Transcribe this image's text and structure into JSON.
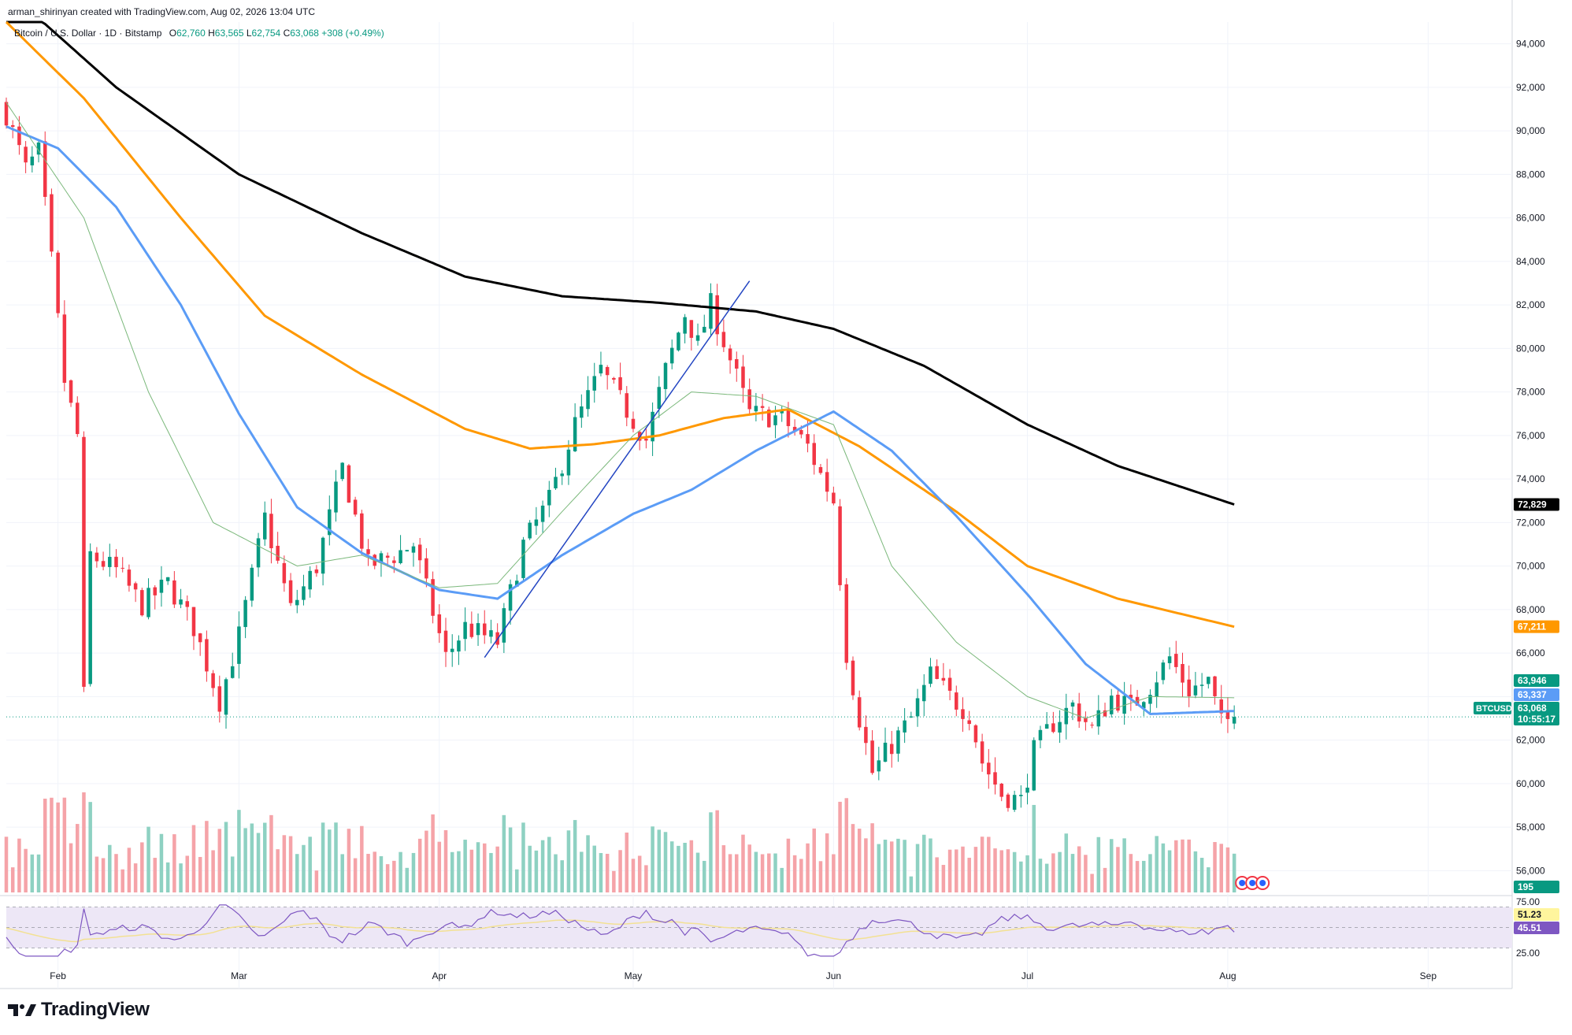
{
  "watermark": "arman_shirinyan created with TradingView.com, Aug 02, 2026 13:04 UTC",
  "symbol": {
    "name": "Bitcoin / U.S. Dollar · 1D · Bitstamp",
    "open_label": "O",
    "open": "62,760",
    "high_label": "H",
    "high": "63,565",
    "low_label": "L",
    "low": "62,754",
    "close_label": "C",
    "close": "63,068",
    "change": "+308 (+0.49%)"
  },
  "brand": "TradingView",
  "colors": {
    "up": "#089981",
    "down": "#f23645",
    "vol_up": "#8ed1c2",
    "vol_down": "#f5a3a8",
    "ma200": "#000000",
    "ma100": "#ff9800",
    "ma50": "#5b9cf6",
    "ma20": "#7bb87b",
    "rsi": "#7e57c2",
    "rsi_ma": "#f3e193",
    "trendline": "#2345c2",
    "rsi_band": "#ede7f6"
  },
  "chart_data": {
    "type": "candlestick",
    "title": "Bitcoin / U.S. Dollar · 1D · Bitstamp",
    "x_range": [
      "2026-01-24",
      "2026-09-14"
    ],
    "x_ticks": [
      {
        "date": "2026-02-01",
        "label": "Feb"
      },
      {
        "date": "2026-03-01",
        "label": "Mar"
      },
      {
        "date": "2026-04-01",
        "label": "Apr"
      },
      {
        "date": "2026-05-01",
        "label": "May"
      },
      {
        "date": "2026-06-01",
        "label": "Jun"
      },
      {
        "date": "2026-07-01",
        "label": "Jul"
      },
      {
        "date": "2026-08-01",
        "label": "Aug"
      },
      {
        "date": "2026-09-01",
        "label": "Sep"
      }
    ],
    "ylim": [
      55000,
      95000
    ],
    "y_ticks": [
      "56,000",
      "58,000",
      "60,000",
      "62,000",
      "64,000",
      "66,000",
      "68,000",
      "70,000",
      "72,000",
      "74,000",
      "76,000",
      "78,000",
      "80,000",
      "82,000",
      "84,000",
      "86,000",
      "88,000",
      "90,000",
      "92,000",
      "94,000"
    ],
    "y_tick_values": [
      56000,
      58000,
      60000,
      62000,
      64000,
      66000,
      68000,
      70000,
      72000,
      74000,
      76000,
      78000,
      80000,
      82000,
      84000,
      86000,
      88000,
      90000,
      92000,
      94000
    ],
    "last_date": "2026-08-02",
    "candle_anchors": [
      [
        "2026-01-24",
        90800
      ],
      [
        "2026-01-27",
        88200
      ],
      [
        "2026-01-29",
        89000
      ],
      [
        "2026-01-31",
        84000
      ],
      [
        "2026-02-02",
        78500
      ],
      [
        "2026-02-04",
        76000
      ],
      [
        "2026-02-05",
        64000
      ],
      [
        "2026-02-06",
        70500
      ],
      [
        "2026-02-10",
        69800
      ],
      [
        "2026-02-14",
        68200
      ],
      [
        "2026-02-18",
        69200
      ],
      [
        "2026-02-22",
        67200
      ],
      [
        "2026-02-26",
        63800
      ],
      [
        "2026-03-01",
        66800
      ],
      [
        "2026-03-03",
        69500
      ],
      [
        "2026-03-05",
        72200
      ],
      [
        "2026-03-09",
        68000
      ],
      [
        "2026-03-13",
        70000
      ],
      [
        "2026-03-17",
        74500
      ],
      [
        "2026-03-21",
        70000
      ],
      [
        "2026-03-25",
        70500
      ],
      [
        "2026-03-28",
        71000
      ],
      [
        "2026-04-02",
        65800
      ],
      [
        "2026-04-05",
        67200
      ],
      [
        "2026-04-10",
        66500
      ],
      [
        "2026-04-14",
        71000
      ],
      [
        "2026-04-18",
        73000
      ],
      [
        "2026-04-22",
        76500
      ],
      [
        "2026-04-26",
        79000
      ],
      [
        "2026-04-29",
        77600
      ],
      [
        "2026-05-03",
        75800
      ],
      [
        "2026-05-06",
        79000
      ],
      [
        "2026-05-09",
        81600
      ],
      [
        "2026-05-11",
        80200
      ],
      [
        "2026-05-13",
        82000
      ],
      [
        "2026-05-16",
        79500
      ],
      [
        "2026-05-19",
        77000
      ],
      [
        "2026-05-24",
        76800
      ],
      [
        "2026-05-28",
        75500
      ],
      [
        "2026-05-30",
        74200
      ],
      [
        "2026-06-01",
        73000
      ],
      [
        "2026-06-03",
        66000
      ],
      [
        "2026-06-05",
        63000
      ],
      [
        "2026-06-07",
        60500
      ],
      [
        "2026-06-10",
        61800
      ],
      [
        "2026-06-13",
        63000
      ],
      [
        "2026-06-16",
        65000
      ],
      [
        "2026-06-19",
        64000
      ],
      [
        "2026-06-22",
        63200
      ],
      [
        "2026-06-24",
        61000
      ],
      [
        "2026-06-27",
        59500
      ],
      [
        "2026-06-30",
        59200
      ],
      [
        "2026-07-02",
        61500
      ],
      [
        "2026-07-05",
        62800
      ],
      [
        "2026-07-08",
        63600
      ],
      [
        "2026-07-11",
        62500
      ],
      [
        "2026-07-14",
        64000
      ],
      [
        "2026-07-17",
        63500
      ],
      [
        "2026-07-20",
        64500
      ],
      [
        "2026-07-23",
        65800
      ],
      [
        "2026-07-26",
        64300
      ],
      [
        "2026-07-29",
        64700
      ],
      [
        "2026-07-31",
        62760
      ],
      [
        "2026-08-02",
        63068
      ]
    ],
    "ma_series": [
      {
        "key": "ma200",
        "last": "72,829",
        "color": "#000000",
        "points": [
          [
            "2026-01-24",
            96500
          ],
          [
            "2026-02-10",
            92000
          ],
          [
            "2026-03-01",
            88000
          ],
          [
            "2026-03-20",
            85300
          ],
          [
            "2026-04-05",
            83300
          ],
          [
            "2026-04-20",
            82400
          ],
          [
            "2026-05-05",
            82100
          ],
          [
            "2026-05-20",
            81700
          ],
          [
            "2026-06-01",
            80900
          ],
          [
            "2026-06-15",
            79200
          ],
          [
            "2026-07-01",
            76500
          ],
          [
            "2026-07-15",
            74600
          ],
          [
            "2026-08-02",
            72829
          ]
        ]
      },
      {
        "key": "ma100",
        "last": "67,211",
        "color": "#ff9800",
        "points": [
          [
            "2026-01-24",
            95000
          ],
          [
            "2026-02-05",
            91500
          ],
          [
            "2026-02-20",
            86000
          ],
          [
            "2026-03-05",
            81500
          ],
          [
            "2026-03-20",
            78800
          ],
          [
            "2026-04-05",
            76300
          ],
          [
            "2026-04-15",
            75400
          ],
          [
            "2026-04-25",
            75600
          ],
          [
            "2026-05-05",
            76000
          ],
          [
            "2026-05-15",
            76800
          ],
          [
            "2026-05-25",
            77200
          ],
          [
            "2026-06-05",
            75500
          ],
          [
            "2026-06-20",
            72500
          ],
          [
            "2026-07-01",
            70000
          ],
          [
            "2026-07-15",
            68500
          ],
          [
            "2026-08-02",
            67211
          ]
        ]
      },
      {
        "key": "ma50",
        "last": "63,337",
        "color": "#5b9cf6",
        "points": [
          [
            "2026-01-24",
            90200
          ],
          [
            "2026-02-01",
            89200
          ],
          [
            "2026-02-10",
            86500
          ],
          [
            "2026-02-20",
            82000
          ],
          [
            "2026-03-01",
            77000
          ],
          [
            "2026-03-10",
            72700
          ],
          [
            "2026-03-20",
            70600
          ],
          [
            "2026-04-01",
            68900
          ],
          [
            "2026-04-10",
            68500
          ],
          [
            "2026-04-20",
            70500
          ],
          [
            "2026-05-01",
            72400
          ],
          [
            "2026-05-10",
            73500
          ],
          [
            "2026-05-20",
            75300
          ],
          [
            "2026-06-01",
            77100
          ],
          [
            "2026-06-10",
            75300
          ],
          [
            "2026-06-20",
            72300
          ],
          [
            "2026-07-01",
            68700
          ],
          [
            "2026-07-10",
            65500
          ],
          [
            "2026-07-20",
            63200
          ],
          [
            "2026-08-02",
            63337
          ]
        ]
      },
      {
        "key": "ma20",
        "last": "63,946",
        "color": "#7bb87b",
        "points": [
          [
            "2026-01-24",
            91300
          ],
          [
            "2026-02-05",
            86000
          ],
          [
            "2026-02-15",
            78000
          ],
          [
            "2026-02-25",
            72000
          ],
          [
            "2026-03-10",
            70000
          ],
          [
            "2026-03-20",
            70500
          ],
          [
            "2026-04-01",
            69000
          ],
          [
            "2026-04-10",
            69200
          ],
          [
            "2026-04-20",
            72500
          ],
          [
            "2026-05-01",
            76000
          ],
          [
            "2026-05-10",
            78000
          ],
          [
            "2026-05-20",
            77800
          ],
          [
            "2026-06-01",
            76500
          ],
          [
            "2026-06-10",
            70000
          ],
          [
            "2026-06-20",
            66500
          ],
          [
            "2026-07-01",
            64000
          ],
          [
            "2026-07-10",
            63000
          ],
          [
            "2026-07-20",
            64000
          ],
          [
            "2026-08-02",
            63946
          ]
        ]
      }
    ],
    "trendline": [
      [
        "2026-04-08",
        65800
      ],
      [
        "2026-05-19",
        83100
      ]
    ],
    "price_badges": [
      {
        "label": "72,829",
        "value": 72829,
        "color": "#000000"
      },
      {
        "label": "67,211",
        "value": 67211,
        "color": "#ff9800"
      },
      {
        "label": "63,946",
        "value": 63946,
        "color": "#089981"
      },
      {
        "label": "63,337",
        "value": 63337,
        "color": "#5b9cf6"
      },
      {
        "label": "63,068",
        "value": 63068,
        "color": "#089981"
      }
    ],
    "last_price_tag": {
      "symbol": "BTCUSD",
      "price": "63,068",
      "countdown": "10:55:17"
    },
    "volume": {
      "last": "195"
    },
    "rsi": {
      "ylim": [
        25,
        75
      ],
      "y_ticks": [
        {
          "value": 75,
          "label": "75.00"
        },
        {
          "value": 25,
          "label": "25.00"
        }
      ],
      "value_label": "45.51",
      "ma_label": "51.23",
      "band": [
        30,
        70
      ],
      "mid": 50
    }
  }
}
